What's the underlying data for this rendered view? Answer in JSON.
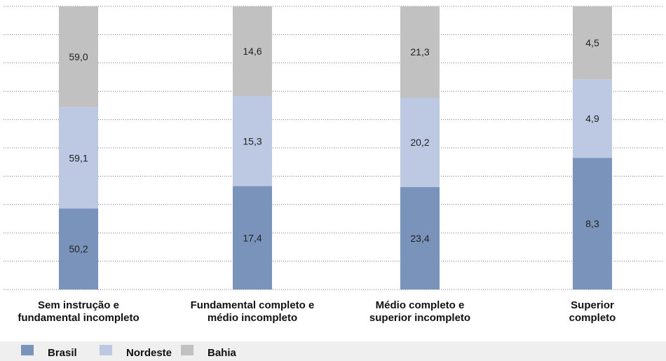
{
  "chart_data": {
    "type": "bar",
    "stacked": true,
    "categories": [
      [
        "Sem instrução e",
        "fundamental incompleto"
      ],
      [
        "Fundamental completo e",
        "médio incompleto"
      ],
      [
        "Médio completo e",
        "superior incompleto"
      ],
      [
        "Superior",
        "completo"
      ]
    ],
    "series": [
      {
        "name": "Brasil",
        "values": [
          "50,2",
          "17,4",
          "23,4",
          "8,3"
        ],
        "fractions": [
          0.286,
          0.365,
          0.362,
          0.465
        ],
        "color": "#7a93bb"
      },
      {
        "name": "Nordeste",
        "values": [
          "59,1",
          "15,3",
          "20,2",
          "4,9"
        ],
        "fractions": [
          0.357,
          0.318,
          0.315,
          0.277
        ],
        "color": "#bdc8e3"
      },
      {
        "name": "Bahia",
        "values": [
          "59,0",
          "14,6",
          "21,3",
          "4,5"
        ],
        "fractions": [
          0.357,
          0.317,
          0.323,
          0.258
        ],
        "color": "#c1c1c1"
      }
    ],
    "grid": true,
    "legend_position": "bottom"
  }
}
